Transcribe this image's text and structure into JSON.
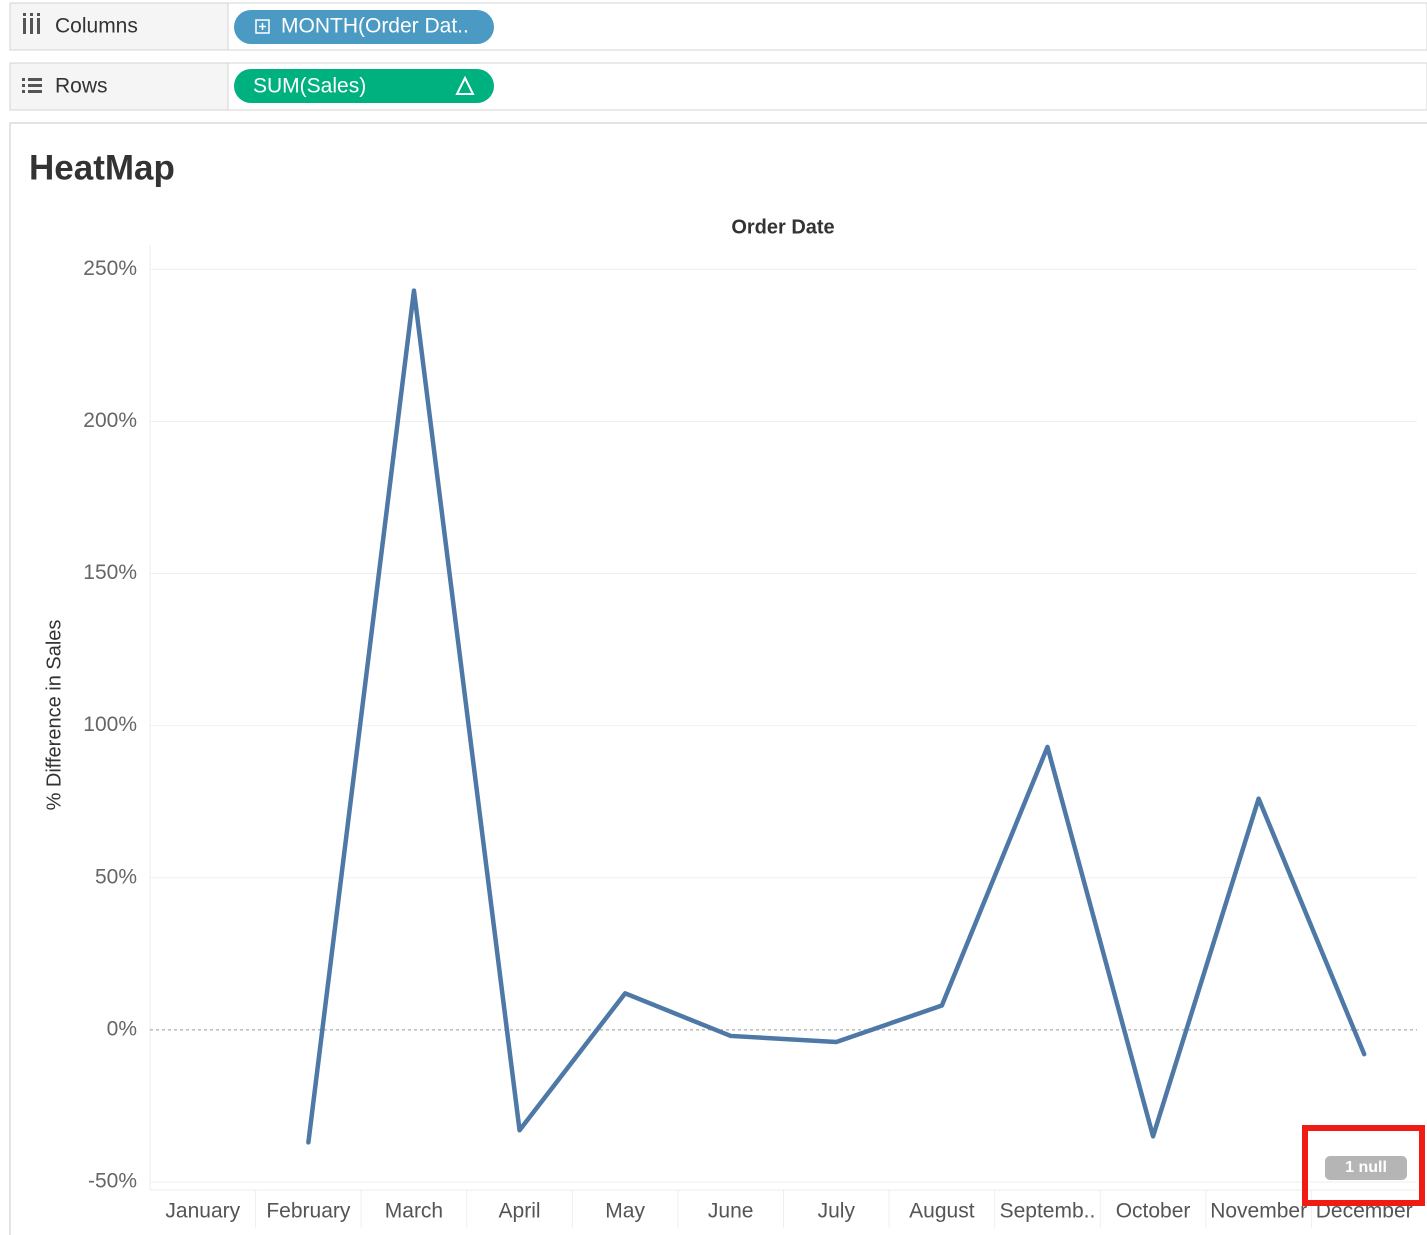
{
  "shelves": {
    "columns": {
      "label": "Columns",
      "pill": "MONTH(Order Dat.."
    },
    "rows": {
      "label": "Rows",
      "pill": "SUM(Sales)"
    }
  },
  "chart_data": {
    "type": "line",
    "title": "HeatMap",
    "x_header": "Order Date",
    "y_label": "% Difference in Sales",
    "categories": [
      "January",
      "February",
      "March",
      "April",
      "May",
      "June",
      "July",
      "August",
      "Septemb..",
      "October",
      "November",
      "December"
    ],
    "series": [
      {
        "name": "SUM(Sales)",
        "color": "#4e78a6",
        "values": [
          null,
          -37,
          243,
          -33,
          12,
          -2,
          -4,
          8,
          93,
          -35,
          76,
          -8
        ]
      }
    ],
    "ylim": [
      -51,
      258
    ],
    "yticks": [
      {
        "value": -50,
        "label": "-50%"
      },
      {
        "value": 0,
        "label": "0%"
      },
      {
        "value": 50,
        "label": "50%"
      },
      {
        "value": 100,
        "label": "100%"
      },
      {
        "value": 150,
        "label": "150%"
      },
      {
        "value": 200,
        "label": "200%"
      },
      {
        "value": 250,
        "label": "250%"
      }
    ],
    "grid": true,
    "null_indicator": "1 null"
  }
}
